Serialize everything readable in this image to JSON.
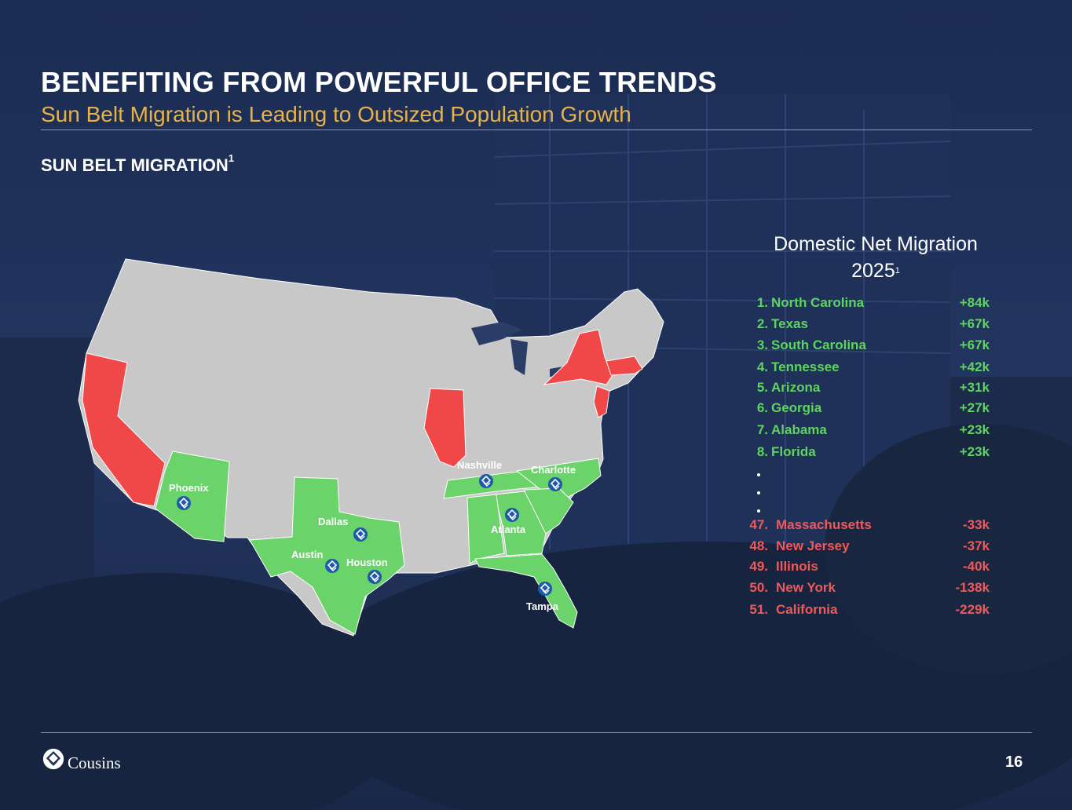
{
  "header": {
    "title": "BENEFITING FROM POWERFUL OFFICE TRENDS",
    "subtitle": "Sun Belt Migration is Leading to Outsized Population Growth"
  },
  "section": {
    "label": "SUN BELT MIGRATION",
    "footnote": "1"
  },
  "migration": {
    "title_line1": "Domestic Net Migration",
    "title_line2": "2025",
    "footnote": "1",
    "top": [
      {
        "rank": "1.",
        "state": "North Carolina",
        "value": "+84k"
      },
      {
        "rank": "2.",
        "state": "Texas",
        "value": "+67k"
      },
      {
        "rank": "3.",
        "state": "South Carolina",
        "value": "+67k"
      },
      {
        "rank": "4.",
        "state": "Tennessee",
        "value": "+42k"
      },
      {
        "rank": "5.",
        "state": "Arizona",
        "value": "+31k"
      },
      {
        "rank": "6.",
        "state": "Georgia",
        "value": "+27k"
      },
      {
        "rank": "7.",
        "state": "Alabama",
        "value": "+23k"
      },
      {
        "rank": "8.",
        "state": "Florida",
        "value": "+23k"
      }
    ],
    "bottom": [
      {
        "rank": "47.",
        "state": "Massachusetts",
        "value": "-33k"
      },
      {
        "rank": "48.",
        "state": "New Jersey",
        "value": "-37k"
      },
      {
        "rank": "49.",
        "state": "Illinois",
        "value": "-40k"
      },
      {
        "rank": "50.",
        "state": "New York",
        "value": "-138k"
      },
      {
        "rank": "51.",
        "state": "California",
        "value": "-229k"
      }
    ]
  },
  "map": {
    "cities": {
      "phoenix": "Phoenix",
      "dallas": "Dallas",
      "austin": "Austin",
      "houston": "Houston",
      "nashville": "Nashville",
      "charlotte": "Charlotte",
      "atlanta": "Atlanta",
      "tampa": "Tampa"
    },
    "colors": {
      "base_state": "#c8c8c8",
      "gain_state": "#6ad46a",
      "loss_state": "#f04848",
      "marker": "#1d5aa8"
    }
  },
  "footer": {
    "logo_text": "Cousins",
    "page_number": "16"
  }
}
